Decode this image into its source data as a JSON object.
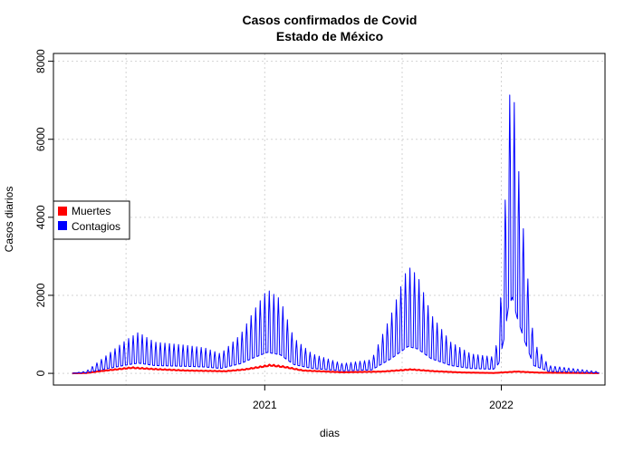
{
  "chart_data": {
    "type": "line",
    "title": "Casos confirmados de Covid",
    "subtitle": "Estado de México",
    "xlabel": "dias",
    "ylabel": "Casos diarios",
    "x_range": [
      "2020-02-10",
      "2022-06-10"
    ],
    "ylim": [
      -300,
      8200
    ],
    "x_ticks": [
      {
        "date": "2021-01-01",
        "label": "2021"
      },
      {
        "date": "2022-01-01",
        "label": "2022"
      }
    ],
    "y_ticks": [
      0,
      2000,
      4000,
      6000,
      8000
    ],
    "grid": true,
    "legend": "left",
    "series": [
      {
        "name": "Muertes",
        "color": "#ff0000",
        "linewidth": 2,
        "weekly_oscillation": 0.15,
        "points": [
          [
            "2020-03-10",
            0
          ],
          [
            "2020-04-01",
            10
          ],
          [
            "2020-05-01",
            80
          ],
          [
            "2020-06-10",
            160
          ],
          [
            "2020-07-15",
            120
          ],
          [
            "2020-09-01",
            80
          ],
          [
            "2020-11-01",
            60
          ],
          [
            "2020-12-01",
            110
          ],
          [
            "2021-01-10",
            230
          ],
          [
            "2021-02-01",
            180
          ],
          [
            "2021-03-01",
            80
          ],
          [
            "2021-05-01",
            30
          ],
          [
            "2021-07-01",
            50
          ],
          [
            "2021-08-15",
            110
          ],
          [
            "2021-09-20",
            60
          ],
          [
            "2021-11-01",
            25
          ],
          [
            "2021-12-20",
            10
          ],
          [
            "2022-01-25",
            50
          ],
          [
            "2022-03-01",
            20
          ],
          [
            "2022-06-01",
            5
          ]
        ]
      },
      {
        "name": "Contagios",
        "color": "#0000ff",
        "linewidth": 1,
        "weekly_oscillation": 0.75,
        "points": [
          [
            "2020-03-10",
            0
          ],
          [
            "2020-04-01",
            60
          ],
          [
            "2020-05-01",
            450
          ],
          [
            "2020-06-01",
            850
          ],
          [
            "2020-06-20",
            1050
          ],
          [
            "2020-07-15",
            800
          ],
          [
            "2020-09-01",
            720
          ],
          [
            "2020-10-01",
            650
          ],
          [
            "2020-10-25",
            500
          ],
          [
            "2020-11-25",
            1000
          ],
          [
            "2020-12-15",
            1600
          ],
          [
            "2021-01-05",
            2150
          ],
          [
            "2021-01-25",
            1900
          ],
          [
            "2021-02-15",
            900
          ],
          [
            "2021-03-15",
            500
          ],
          [
            "2021-05-01",
            250
          ],
          [
            "2021-06-15",
            350
          ],
          [
            "2021-07-15",
            1500
          ],
          [
            "2021-08-10",
            2750
          ],
          [
            "2021-08-25",
            2500
          ],
          [
            "2021-09-15",
            1500
          ],
          [
            "2021-10-15",
            800
          ],
          [
            "2021-11-15",
            500
          ],
          [
            "2021-12-20",
            420
          ],
          [
            "2021-12-28",
            1000
          ],
          [
            "2022-01-05",
            3500
          ],
          [
            "2022-01-12",
            6800
          ],
          [
            "2022-01-18",
            7800
          ],
          [
            "2022-01-25",
            5800
          ],
          [
            "2022-02-05",
            3500
          ],
          [
            "2022-02-20",
            800
          ],
          [
            "2022-03-15",
            200
          ],
          [
            "2022-06-01",
            40
          ]
        ]
      }
    ]
  }
}
